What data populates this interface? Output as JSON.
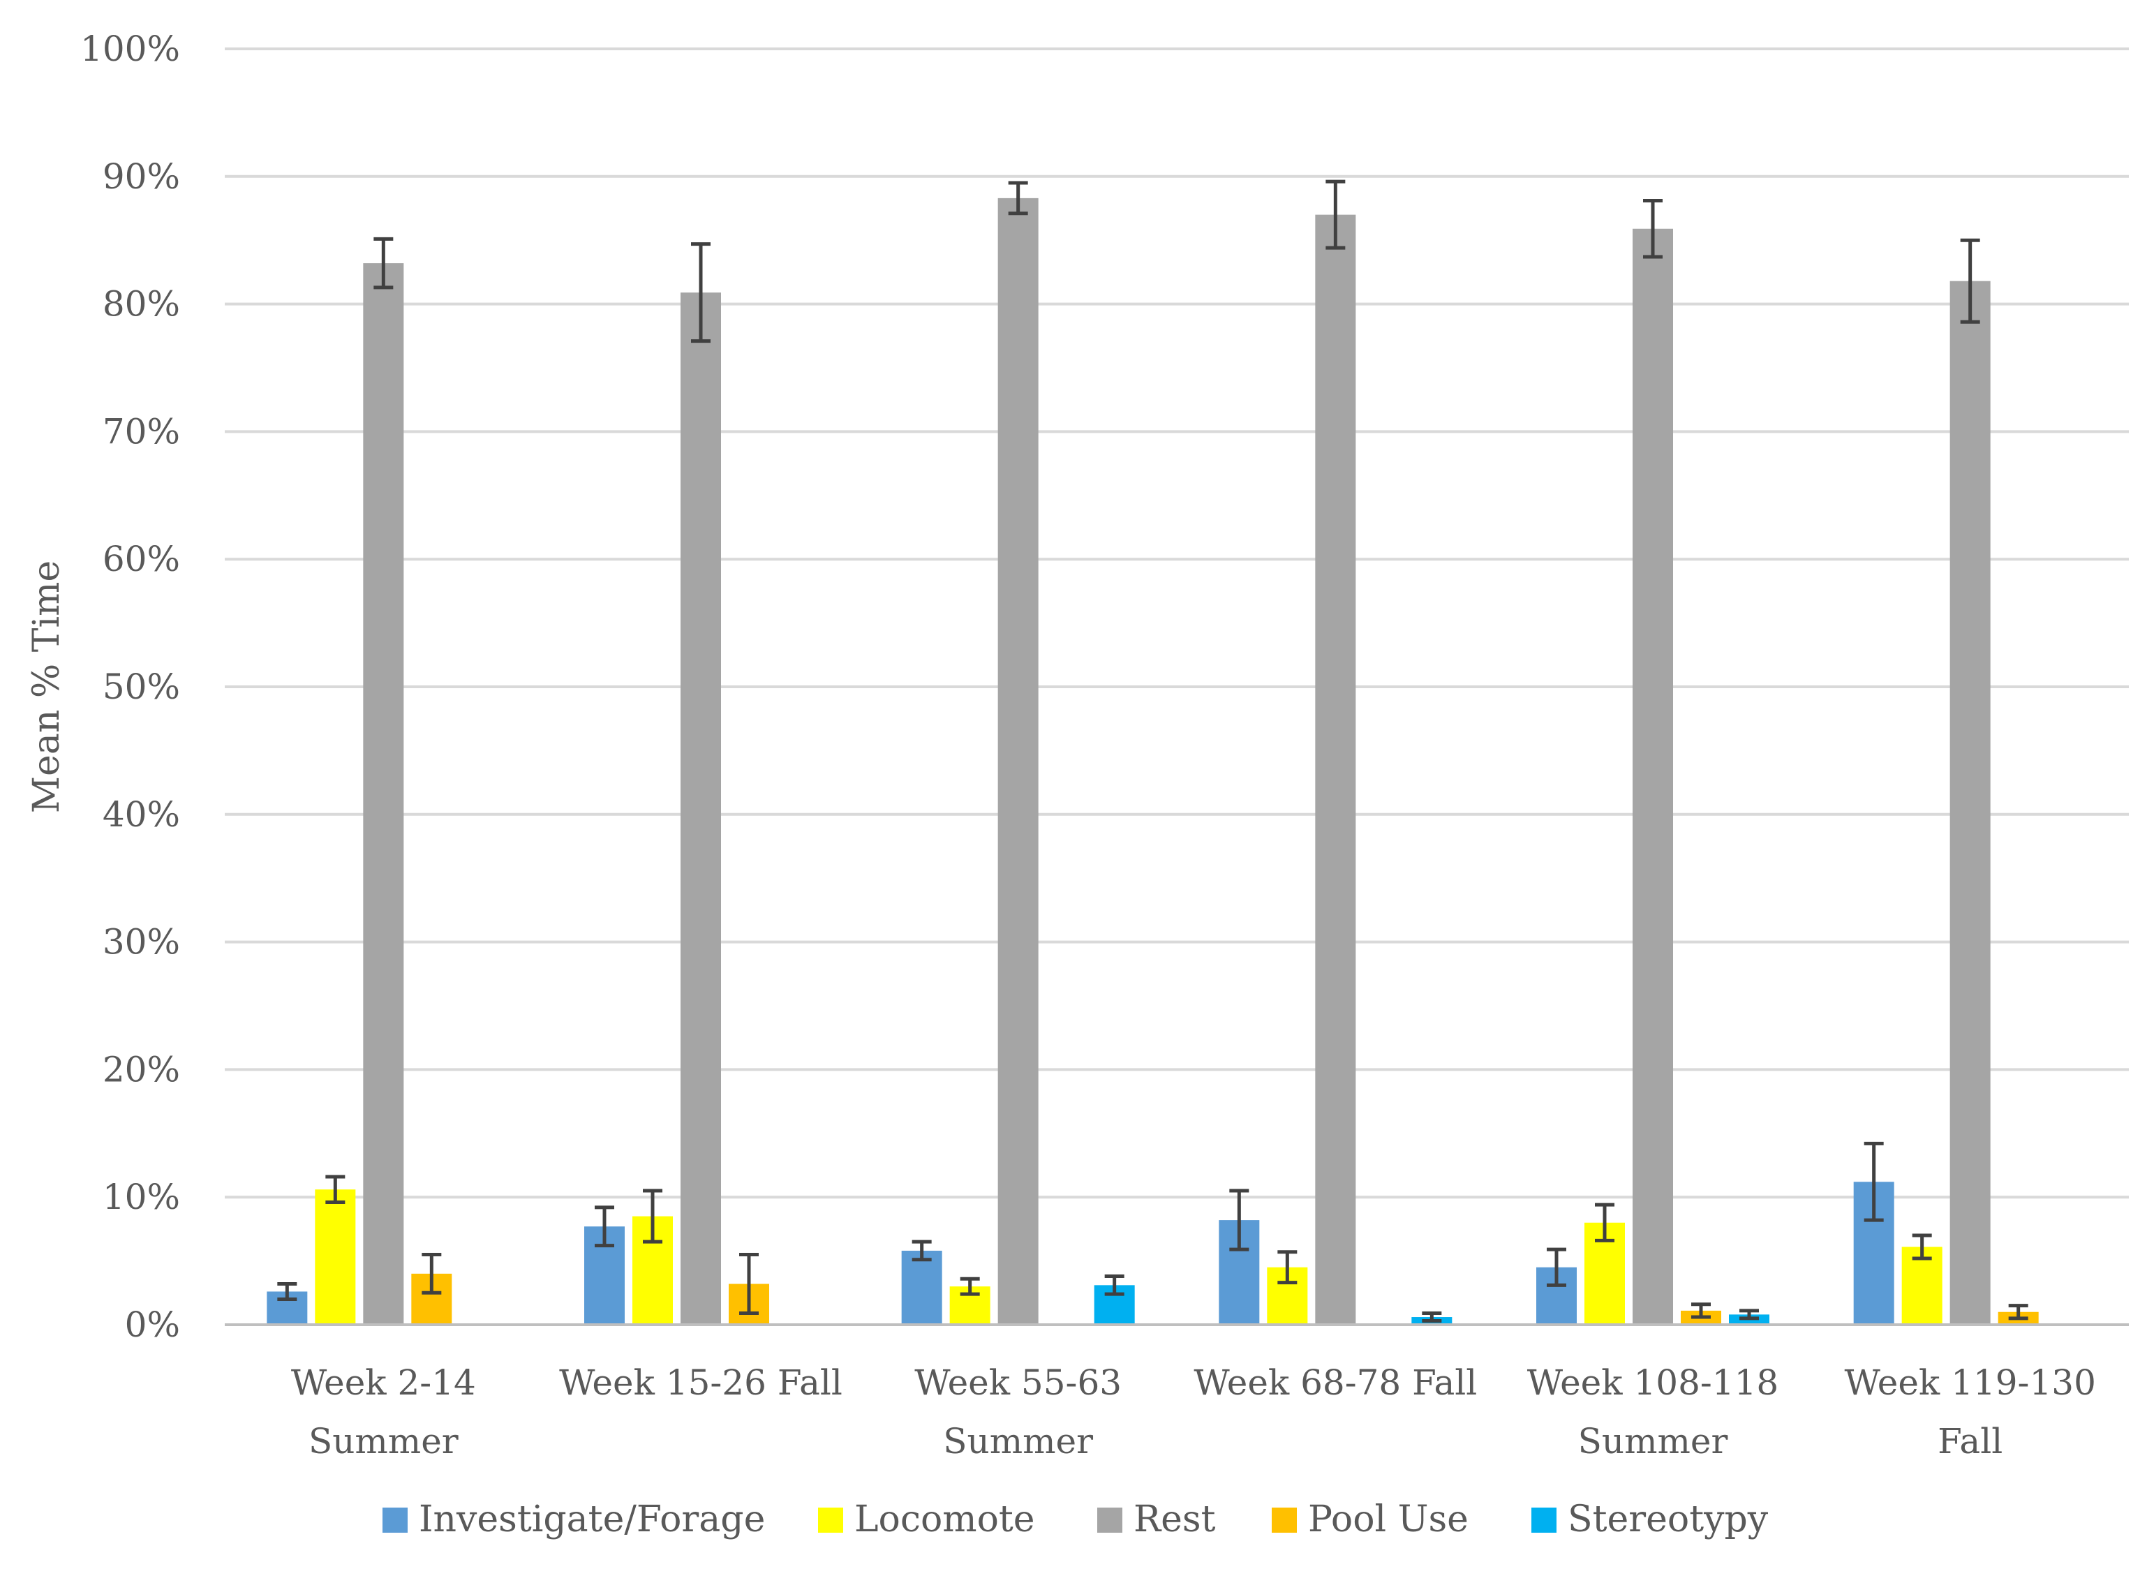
{
  "chart_data": {
    "type": "bar",
    "title": "",
    "xlabel": "",
    "ylabel": "Mean % Time",
    "ylim": [
      0,
      100
    ],
    "ytick_values": [
      0,
      10,
      20,
      30,
      40,
      50,
      60,
      70,
      80,
      90,
      100
    ],
    "ytick_labels": [
      "0%",
      "10%",
      "20%",
      "30%",
      "40%",
      "50%",
      "60%",
      "70%",
      "80%",
      "90%",
      "100%"
    ],
    "grid": true,
    "legend_position": "bottom",
    "categories": [
      [
        "Week 2-14",
        "Summer"
      ],
      [
        "Week 15-26 Fall"
      ],
      [
        "Week 55-63",
        "Summer"
      ],
      [
        "Week 68-78 Fall"
      ],
      [
        "Week 108-118",
        "Summer"
      ],
      [
        "Week 119-130",
        "Fall"
      ]
    ],
    "series": [
      {
        "name": "Investigate/Forage",
        "color": "#5b9bd5",
        "values": [
          2.6,
          7.7,
          5.8,
          8.2,
          4.5,
          11.2
        ],
        "error": [
          0.6,
          1.5,
          0.7,
          2.3,
          1.4,
          3.0
        ]
      },
      {
        "name": "Locomote",
        "color": "#ffff00",
        "values": [
          10.6,
          8.5,
          3.0,
          4.5,
          8.0,
          6.1
        ],
        "error": [
          1.0,
          2.0,
          0.6,
          1.2,
          1.4,
          0.9
        ]
      },
      {
        "name": "Rest",
        "color": "#a5a5a5",
        "values": [
          83.2,
          80.9,
          88.3,
          87.0,
          85.9,
          81.8
        ],
        "error": [
          1.9,
          3.8,
          1.2,
          2.6,
          2.2,
          3.2
        ]
      },
      {
        "name": "Pool Use",
        "color": "#ffc000",
        "values": [
          4.0,
          3.2,
          0.1,
          0.1,
          1.1,
          1.0
        ],
        "error": [
          1.5,
          2.3,
          0,
          0,
          0.5,
          0.5
        ]
      },
      {
        "name": "Stereotypy",
        "color": "#00b0f0",
        "values": [
          0,
          0,
          3.1,
          0.6,
          0.8,
          0
        ],
        "error": [
          0,
          0,
          0.7,
          0.3,
          0.3,
          0
        ]
      }
    ]
  }
}
